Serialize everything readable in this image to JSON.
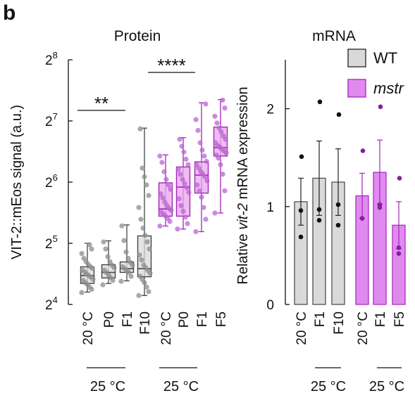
{
  "panel_label": "b",
  "colors": {
    "wt_fill": "#d9d9d9",
    "wt_stroke": "#444444",
    "wt_point": "#8c8c8c",
    "mstr_fill": "#e9a6ee",
    "mstr_stroke": "#a325b8",
    "mstr_point": "#b865d0",
    "mstr_bar": "#e08af0",
    "mstr_dot": "#8a1e9e"
  },
  "chart_data": [
    {
      "type": "box",
      "title": "Protein",
      "ylabel": "VIT-2::mEos signal (a.u.)",
      "yscale": "log2",
      "yticks": [
        {
          "base": "2",
          "exp": "4",
          "value": 16
        },
        {
          "base": "2",
          "exp": "5",
          "value": 32
        },
        {
          "base": "2",
          "exp": "6",
          "value": 64
        },
        {
          "base": "2",
          "exp": "7",
          "value": 128
        },
        {
          "base": "2",
          "exp": "8",
          "value": 256
        }
      ],
      "ylim": [
        16,
        256
      ],
      "categories": [
        "20 °C",
        "P0",
        "F1",
        "F10",
        "20 °C",
        "P0",
        "F1",
        "F5"
      ],
      "groups": [
        "WT",
        "WT",
        "WT",
        "WT",
        "mstr",
        "mstr",
        "mstr",
        "mstr"
      ],
      "boxes": [
        {
          "whislo": 18.4,
          "q1": 20.3,
          "med": 22.2,
          "q3": 24.5,
          "whishi": 32.0
        },
        {
          "whislo": 20.3,
          "q1": 21.6,
          "med": 23.0,
          "q3": 25.1,
          "whishi": 32.9
        },
        {
          "whislo": 20.9,
          "q1": 23.0,
          "med": 24.0,
          "q3": 25.9,
          "whishi": 39.4
        },
        {
          "whislo": 17.7,
          "q1": 21.9,
          "med": 24.0,
          "q3": 34.8,
          "whishi": 118.0
        },
        {
          "whislo": 38.9,
          "q1": 43.5,
          "med": 47.2,
          "q3": 63.5,
          "whishi": 87.2
        },
        {
          "whislo": 37.6,
          "q1": 43.5,
          "med": 60.5,
          "q3": 76.0,
          "whishi": 105.9
        },
        {
          "whislo": 36.5,
          "q1": 56.5,
          "med": 69.3,
          "q3": 80.5,
          "whishi": 157.3
        },
        {
          "whislo": 45.1,
          "q1": 86.0,
          "med": 94.6,
          "q3": 119.4,
          "whishi": 163.0
        }
      ],
      "points": [
        [
          18.3,
          19.0,
          19.5,
          20.0,
          20.5,
          21.0,
          21.3,
          21.8,
          22.2,
          22.6,
          23.1,
          23.6,
          24.1,
          24.6,
          25.3,
          26.0,
          27.0,
          28.5,
          30.0,
          31.5
        ],
        [
          20.0,
          21.0,
          21.7,
          22.3,
          23.0,
          23.6,
          24.3,
          25.0,
          26.0,
          27.5,
          30.0,
          32.5
        ],
        [
          20.8,
          22.0,
          23.0,
          23.5,
          24.0,
          24.5,
          25.0,
          25.8,
          27.0,
          29.0,
          33.0,
          39.0
        ],
        [
          17.7,
          18.5,
          19.5,
          20.5,
          21.2,
          22.0,
          22.8,
          23.5,
          24.2,
          25.0,
          26.5,
          28.0,
          30.0,
          32.5,
          35.0,
          38.0,
          42.0,
          48.0,
          55.0,
          62.0,
          68.0,
          75.0,
          117.0
        ],
        [
          38.9,
          41.0,
          42.5,
          43.5,
          44.5,
          45.5,
          46.5,
          47.5,
          49.0,
          51.0,
          53.5,
          56.0,
          59.0,
          62.0,
          66.0,
          72.0,
          80.0,
          86.0
        ],
        [
          37.6,
          40.0,
          43.0,
          46.0,
          49.0,
          53.0,
          57.0,
          60.0,
          63.0,
          66.0,
          70.0,
          74.0,
          78.0,
          83.0,
          90.0,
          96.0,
          104.0
        ],
        [
          36.5,
          42.0,
          48.0,
          54.0,
          58.0,
          62.0,
          65.0,
          68.0,
          70.0,
          72.0,
          75.0,
          78.0,
          81.0,
          86.0,
          92.0,
          100.0,
          115.0,
          130.0,
          155.0
        ],
        [
          45.1,
          58.0,
          70.0,
          78.0,
          84.0,
          87.0,
          89.0,
          91.0,
          93.0,
          95.0,
          97.0,
          100.0,
          104.0,
          108.0,
          113.0,
          118.0,
          125.0,
          135.0,
          148.0,
          162.0
        ]
      ],
      "significance": [
        {
          "label": "**",
          "from": 0,
          "to": 3
        },
        {
          "label": "****",
          "from": 4,
          "to": 7
        }
      ],
      "bracket_labels": [
        {
          "label": "25 °C",
          "from": 1,
          "to": 3
        },
        {
          "label": "25 °C",
          "from": 5,
          "to": 7
        }
      ]
    },
    {
      "type": "bar",
      "title": "mRNA",
      "ylabel_prefix": "Relative ",
      "ylabel_italic": "vit-2",
      "ylabel_suffix": " mRNA expression",
      "yticks": [
        0,
        1,
        2
      ],
      "ylim": [
        0,
        2.5
      ],
      "categories": [
        "20 °C",
        "F1",
        "F10",
        "20 °C",
        "F1",
        "F5"
      ],
      "groups": [
        "WT",
        "WT",
        "WT",
        "mstr",
        "mstr",
        "mstr"
      ],
      "values": [
        1.05,
        1.29,
        1.25,
        1.11,
        1.35,
        0.81
      ],
      "errors": [
        0.24,
        0.38,
        0.34,
        0.23,
        0.33,
        0.24
      ],
      "points": [
        [
          1.51,
          0.96,
          0.69
        ],
        [
          2.07,
          0.97,
          0.86
        ],
        [
          1.94,
          1.02,
          0.81
        ],
        [
          1.57,
          0.88,
          0.88
        ],
        [
          2.02,
          1.02,
          0.99
        ],
        [
          1.29,
          0.58,
          0.52
        ]
      ],
      "legend": [
        {
          "name": "WT",
          "italic": false
        },
        {
          "name": "mstr",
          "italic": true
        }
      ],
      "legend_position": "top-right",
      "bracket_labels": [
        {
          "label": "25 °C",
          "from": 1,
          "to": 2
        },
        {
          "label": "25 °C",
          "from": 4,
          "to": 5
        }
      ]
    }
  ]
}
